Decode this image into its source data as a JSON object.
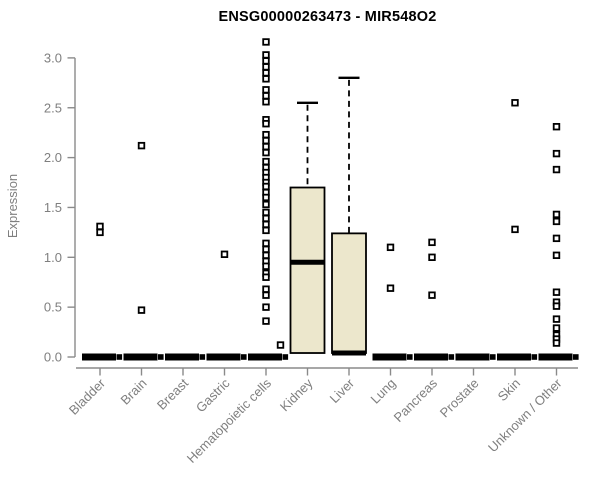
{
  "chart_data": {
    "type": "box",
    "title": "ENSG00000263473 - MIR548O2",
    "ylabel": "Expression",
    "ylim": [
      0,
      3.0
    ],
    "y_ticks": [
      0.0,
      0.5,
      1.0,
      1.5,
      2.0,
      2.5,
      3.0
    ],
    "grid": false,
    "legend": "none",
    "categories": [
      "Bladder",
      "Brain",
      "Breast",
      "Gastric",
      "Hematopoietic cells",
      "Kidney",
      "Liver",
      "Lung",
      "Pancreas",
      "Prostate",
      "Skin",
      "Unknown / Other"
    ],
    "boxes": [
      {
        "q1": 0,
        "median": 0,
        "q3": 0,
        "high": 0
      },
      {
        "q1": 0,
        "median": 0,
        "q3": 0,
        "high": 0
      },
      {
        "q1": 0,
        "median": 0,
        "q3": 0,
        "high": 0
      },
      {
        "q1": 0,
        "median": 0,
        "q3": 0,
        "high": 0
      },
      {
        "q1": 0,
        "median": 0,
        "q3": 0,
        "high": 0
      },
      {
        "q1": 0.04,
        "median": 0.95,
        "q3": 1.7,
        "high": 2.55
      },
      {
        "q1": 0.04,
        "median": 0.04,
        "q3": 1.24,
        "high": 2.8
      },
      {
        "q1": 0,
        "median": 0,
        "q3": 0,
        "high": 0
      },
      {
        "q1": 0,
        "median": 0,
        "q3": 0,
        "high": 0
      },
      {
        "q1": 0,
        "median": 0,
        "q3": 0,
        "high": 0
      },
      {
        "q1": 0,
        "median": 0,
        "q3": 0,
        "high": 0
      },
      {
        "q1": 0,
        "median": 0,
        "q3": 0,
        "high": 0
      }
    ],
    "points": [
      [
        1.31,
        1.25
      ],
      [
        2.12,
        0.47
      ],
      [],
      [
        1.03
      ],
      [
        3.16,
        3.03,
        2.97,
        2.91,
        2.85,
        2.79,
        2.68,
        2.62,
        2.56,
        2.38,
        2.34,
        2.23,
        2.17,
        2.11,
        2.05,
        1.96,
        1.9,
        1.85,
        1.8,
        1.75,
        1.71,
        1.65,
        1.6,
        1.53,
        1.45,
        1.39,
        1.33,
        1.27,
        1.14,
        1.08,
        1.02,
        0.96,
        0.91,
        0.84,
        0.8,
        0.68,
        0.62,
        0.5,
        0.36
      ],
      [],
      [],
      [
        1.1,
        0.69
      ],
      [
        1.15,
        1.0,
        0.62
      ],
      [],
      [
        2.55,
        1.28
      ],
      [
        2.31,
        2.04,
        1.88,
        1.43,
        1.36,
        1.19,
        1.02,
        0.65,
        0.55,
        0.51,
        0.38,
        0.29,
        0.22,
        0.18,
        0.14
      ]
    ],
    "offset_points": [
      {
        "category": "Kidney",
        "value": 0.12,
        "dx": -27
      }
    ],
    "zero_bar_has_right_point": true,
    "styles": {
      "box_fill": "#ECE7CC",
      "box_stroke": "#000000",
      "median_color": "#000000",
      "whisker_color": "#000000",
      "axis_color": "#8a8a8a",
      "text_color": "#7f7f7f",
      "title_color": "#000000",
      "background": "#ffffff"
    }
  }
}
